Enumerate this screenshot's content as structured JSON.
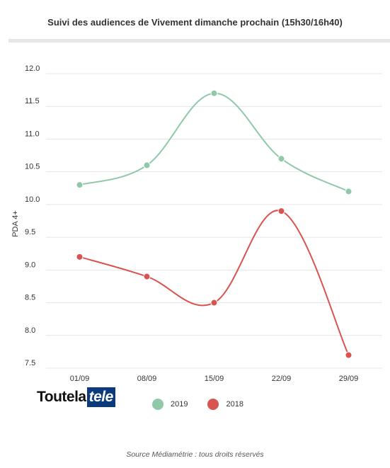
{
  "title": "Suivi des audiences de Vivement dimanche prochain (15h30/16h40)",
  "source": "Source Médiamétrie : tous droits réservés",
  "logo": {
    "part1": "Toutela",
    "part2": "tele"
  },
  "chart_data": {
    "type": "line",
    "title": "Suivi des audiences de Vivement dimanche prochain (15h30/16h40)",
    "xlabel": "",
    "ylabel": "PDA 4+",
    "categories": [
      "01/09",
      "08/09",
      "15/09",
      "22/09",
      "29/09"
    ],
    "ylim": [
      7.5,
      12.0
    ],
    "yticks": [
      "12.0",
      "11.5",
      "11.0",
      "10.5",
      "10.0",
      "9.5",
      "9.0",
      "8.5",
      "8.0",
      "7.5"
    ],
    "grid": true,
    "legend_position": "bottom",
    "series": [
      {
        "name": "2019",
        "color": "#8fc9a9",
        "values": [
          10.3,
          10.6,
          11.7,
          10.7,
          10.2
        ]
      },
      {
        "name": "2018",
        "color": "#d9534f",
        "values": [
          9.2,
          8.9,
          8.5,
          9.9,
          7.7
        ]
      }
    ]
  }
}
